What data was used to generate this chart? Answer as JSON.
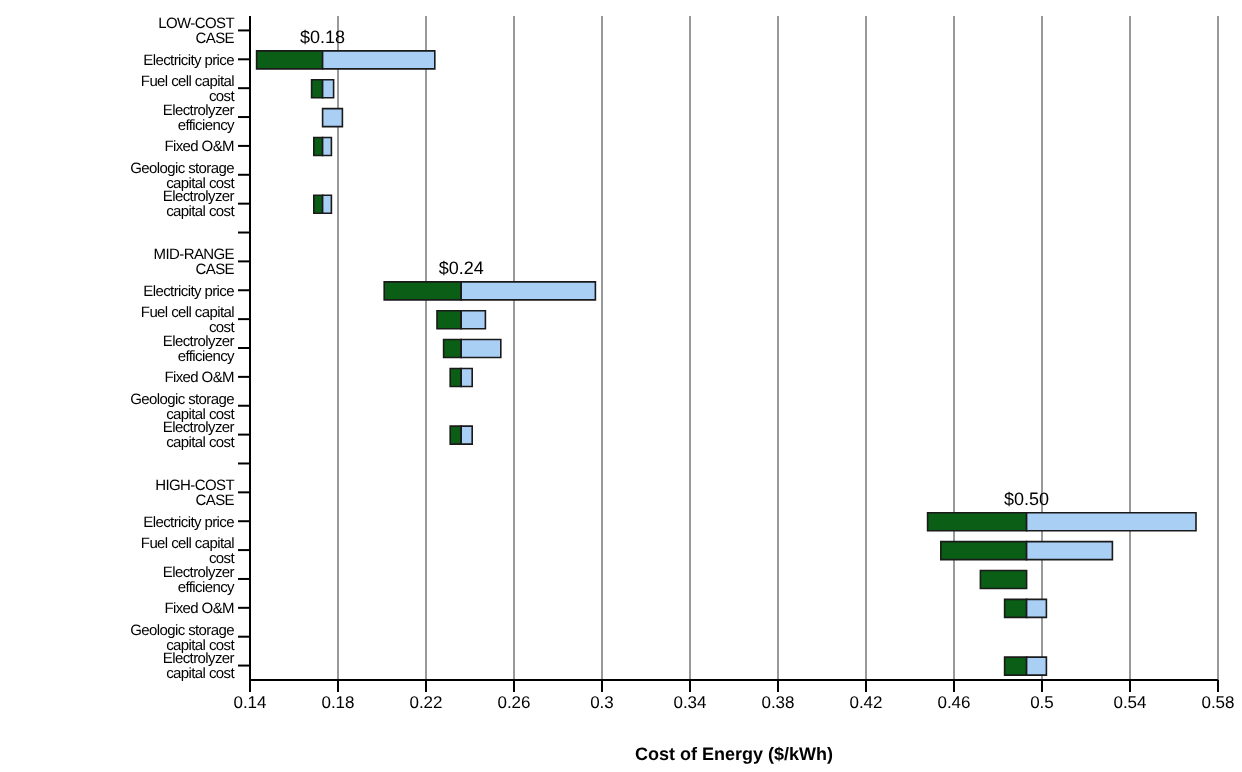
{
  "chart_data": {
    "type": "bar",
    "orientation": "horizontal",
    "xlabel": "Cost of Energy ($/kWh)",
    "categories": [
      "LOW-COST CASE",
      "Electricity price",
      "Fuel cell capital cost",
      "Electrolyzer efficiency",
      "Fixed O&M",
      "Geologic storage capital cost",
      "Electrolyzer capital cost",
      null,
      "MID-RANGE CASE",
      "Electricity price",
      "Fuel cell capital cost",
      "Electrolyzer efficiency",
      "Fixed O&M",
      "Geologic storage capital cost",
      "Electrolyzer capital cost",
      null,
      "HIGH-COST CASE",
      "Electricity price",
      "Fuel cell capital cost",
      "Electrolyzer efficiency",
      "Fixed O&M",
      "Geologic storage capital cost",
      "Electrolyzer capital cost"
    ],
    "series": [
      {
        "color": "#0b5e16",
        "base": [
          null,
          0.143,
          0.168,
          null,
          0.169,
          null,
          0.169,
          null,
          null,
          0.201,
          0.225,
          0.228,
          0.231,
          null,
          0.231,
          null,
          null,
          0.448,
          0.454,
          0.472,
          0.483,
          null,
          0.483
        ],
        "values": [
          null,
          0.03,
          0.005,
          null,
          0.004,
          null,
          0.004,
          null,
          null,
          0.035,
          0.011,
          0.008,
          0.005,
          null,
          0.005,
          null,
          null,
          0.045,
          0.039,
          0.021,
          0.01,
          null,
          0.01
        ]
      },
      {
        "color": "#a9cff5",
        "base": [
          null,
          0.173,
          0.173,
          0.173,
          0.173,
          null,
          0.173,
          null,
          null,
          0.236,
          0.236,
          0.236,
          0.236,
          null,
          0.236,
          null,
          null,
          0.493,
          0.493,
          null,
          0.493,
          null,
          0.493
        ],
        "values": [
          null,
          0.051,
          0.005,
          0.009,
          0.004,
          null,
          0.004,
          null,
          null,
          0.061,
          0.011,
          0.018,
          0.005,
          null,
          0.005,
          null,
          null,
          0.077,
          0.039,
          null,
          0.009,
          null,
          0.009
        ]
      }
    ],
    "xlim": [
      0.14,
      0.58
    ],
    "xticks": [
      0.14,
      0.18,
      0.22,
      0.26,
      0.3,
      0.34,
      0.38,
      0.42,
      0.46,
      0.5,
      0.54,
      0.58
    ],
    "grid": "x",
    "legend": false,
    "annotations": [
      {
        "text": "$0.18",
        "x": 0.173,
        "y": "LOW-COST CASE"
      },
      {
        "text": "$0.24",
        "x": 0.236,
        "y": "MID-RANGE CASE"
      },
      {
        "text": "$0.50",
        "x": 0.493,
        "y": "HIGH-COST CASE"
      }
    ]
  }
}
